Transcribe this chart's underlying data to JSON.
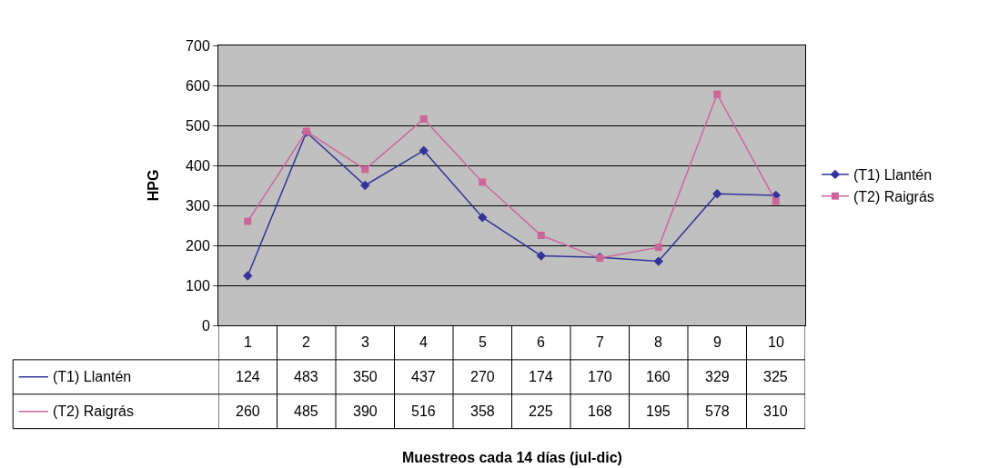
{
  "chart_data": {
    "type": "line",
    "annotations": [
      "Muestreos cada 14 días (jul-dic)"
    ],
    "ylabel": "HPG",
    "categories": [
      "1",
      "2",
      "3",
      "4",
      "5",
      "6",
      "7",
      "8",
      "9",
      "10"
    ],
    "series": [
      {
        "name": "(T1) Llantén",
        "color": "#333399",
        "marker": "diamond",
        "values": [
          124,
          483,
          350,
          437,
          270,
          174,
          170,
          160,
          329,
          325
        ]
      },
      {
        "name": "(T2) Raigrás",
        "color": "#cc6699",
        "marker": "square",
        "values": [
          260,
          485,
          390,
          516,
          358,
          225,
          168,
          195,
          578,
          310
        ]
      }
    ],
    "ylim": [
      0,
      700
    ],
    "yticks": [
      0,
      100,
      200,
      300,
      400,
      500,
      600,
      700
    ],
    "grid": "y",
    "legend": "right",
    "data_labels": true
  }
}
